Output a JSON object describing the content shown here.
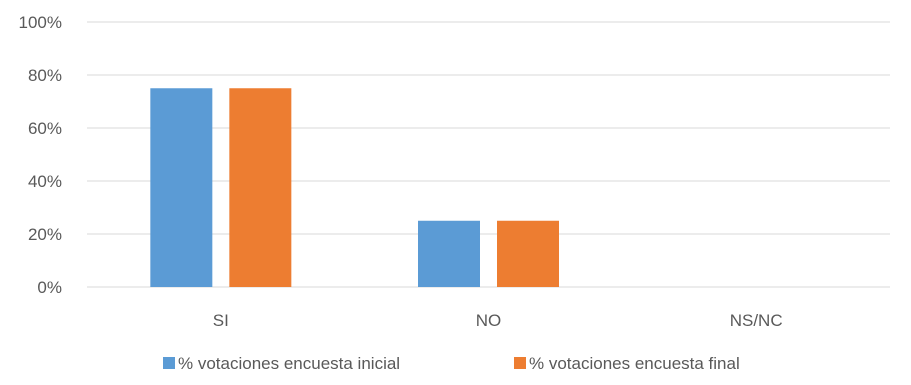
{
  "chart_data": {
    "type": "bar",
    "categories": [
      "SI",
      "NO",
      "NS/NC"
    ],
    "series": [
      {
        "name": "% votaciones encuesta inicial",
        "values": [
          75,
          25,
          0
        ]
      },
      {
        "name": "% votaciones encuesta final",
        "values": [
          75,
          25,
          0
        ]
      }
    ],
    "ylim": [
      0,
      100
    ],
    "yticks": [
      0,
      20,
      40,
      60,
      80,
      100
    ],
    "ytick_labels": [
      "0%",
      "20%",
      "40%",
      "60%",
      "80%",
      "100%"
    ],
    "grid": true,
    "legend_position": "bottom",
    "colors": [
      "#5b9bd5",
      "#ed7d31"
    ],
    "gridline_color": "#d9d9d9"
  }
}
